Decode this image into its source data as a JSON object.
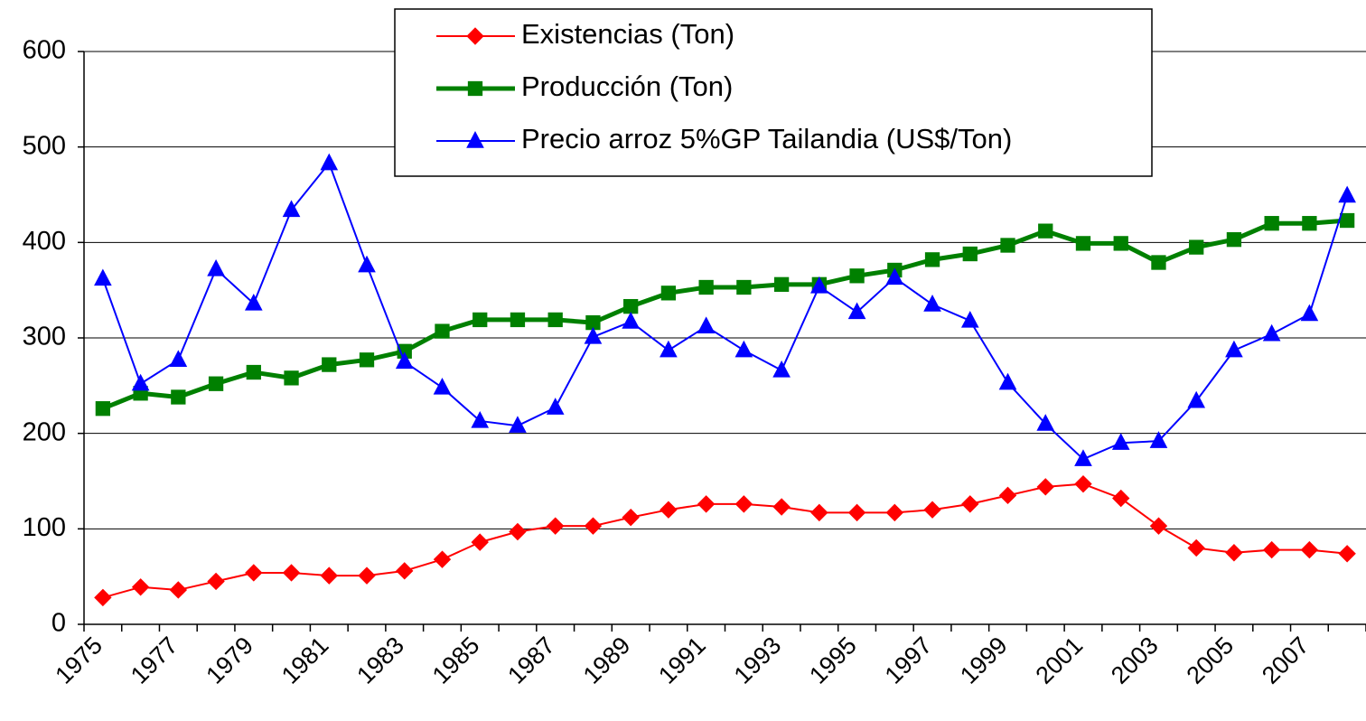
{
  "chart_data": {
    "type": "line",
    "categories": [
      "1975",
      null,
      "1977",
      null,
      "1979",
      null,
      "1981",
      null,
      "1983",
      null,
      "1985",
      null,
      "1987",
      null,
      "1989",
      null,
      "1991",
      null,
      "1993",
      null,
      "1995",
      null,
      "1997",
      null,
      "1999",
      null,
      "2001",
      null,
      "2003",
      null,
      "2005",
      null,
      "2007",
      null
    ],
    "series": [
      {
        "name": "Existencias (Ton)",
        "color": "#ff0000",
        "marker": "diamond",
        "line_width": 2,
        "values": [
          28,
          39,
          36,
          45,
          54,
          54,
          51,
          51,
          56,
          68,
          86,
          97,
          103,
          103,
          112,
          120,
          126,
          126,
          123,
          117,
          117,
          117,
          120,
          126,
          135,
          144,
          147,
          132,
          103,
          80,
          75,
          78,
          78,
          74
        ]
      },
      {
        "name": "Producción (Ton)",
        "color": "#008000",
        "marker": "square",
        "line_width": 5,
        "values": [
          226,
          242,
          238,
          252,
          264,
          258,
          272,
          277,
          286,
          307,
          319,
          319,
          319,
          316,
          333,
          347,
          353,
          353,
          356,
          356,
          365,
          371,
          382,
          388,
          397,
          412,
          399,
          399,
          379,
          395,
          403,
          420,
          420,
          423
        ]
      },
      {
        "name": "Precio arroz 5%GP Tailandia (US$/Ton)",
        "color": "#0000ff",
        "marker": "triangle",
        "line_width": 2,
        "values": [
          362,
          252,
          277,
          372,
          336,
          434,
          483,
          376,
          275,
          248,
          213,
          208,
          227,
          301,
          317,
          287,
          312,
          287,
          266,
          354,
          327,
          363,
          335,
          318,
          253,
          210,
          173,
          190,
          192,
          234,
          287,
          304,
          325,
          449
        ]
      }
    ],
    "ylim": [
      0,
      600
    ],
    "yticks": [
      0,
      100,
      200,
      300,
      400,
      500,
      600
    ],
    "grid": true,
    "legend": "top"
  }
}
